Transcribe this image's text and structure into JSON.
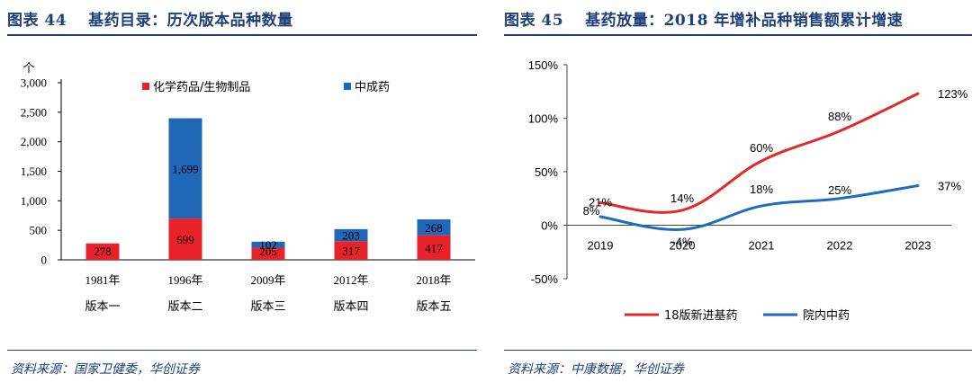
{
  "left": {
    "figure_no": "图表 44",
    "figure_title": "基药目录：历次版本品种数量",
    "source": "资料来源：国家卫健委，华创证券",
    "chart_data": {
      "type": "bar",
      "stacked": true,
      "y_unit": "个",
      "categories": [
        "1981年",
        "1996年",
        "2009年",
        "2012年",
        "2018年"
      ],
      "subcategories": [
        "版本一",
        "版本二",
        "版本三",
        "版本四",
        "版本五"
      ],
      "series": [
        {
          "name": "化学药品/生物制品",
          "color": "#e8222a",
          "values": [
            278,
            699,
            205,
            317,
            417
          ]
        },
        {
          "name": "中成药",
          "color": "#2167b8",
          "values": [
            null,
            1699,
            102,
            203,
            268
          ]
        }
      ],
      "ylim": [
        0,
        3000
      ],
      "yticks": [
        0,
        500,
        1000,
        1500,
        2000,
        2500,
        3000
      ],
      "ytick_labels": [
        "0",
        "500",
        "1,000",
        "1,500",
        "2,000",
        "2,500",
        "3,000"
      ],
      "data_labels": [
        [
          "278",
          "699",
          "205",
          "317",
          "417"
        ],
        [
          "",
          "1,699",
          "102",
          "203",
          "268"
        ]
      ],
      "legend_position": "top"
    }
  },
  "right": {
    "figure_no": "图表 45",
    "figure_title": "基药放量：2018 年增补品种销售额累计增速",
    "source": "资料来源：中康数据，华创证券",
    "chart_data": {
      "type": "line",
      "x": [
        "2019",
        "2020",
        "2021",
        "2022",
        "2023"
      ],
      "series": [
        {
          "name": "18版新进基药",
          "color": "#e02b2b",
          "values": [
            21,
            14,
            60,
            88,
            123
          ],
          "labels": [
            "21%",
            "14%",
            "60%",
            "88%",
            "123%"
          ]
        },
        {
          "name": "院内中药",
          "color": "#1f6bbd",
          "values": [
            8,
            -4,
            18,
            25,
            37
          ],
          "labels": [
            "8%",
            "-4%",
            "18%",
            "25%",
            "37%"
          ]
        }
      ],
      "ylim": [
        -50,
        150
      ],
      "yticks": [
        -50,
        0,
        50,
        100,
        150
      ],
      "ytick_labels": [
        "-50%",
        "0%",
        "50%",
        "100%",
        "150%"
      ],
      "legend_position": "bottom"
    }
  }
}
